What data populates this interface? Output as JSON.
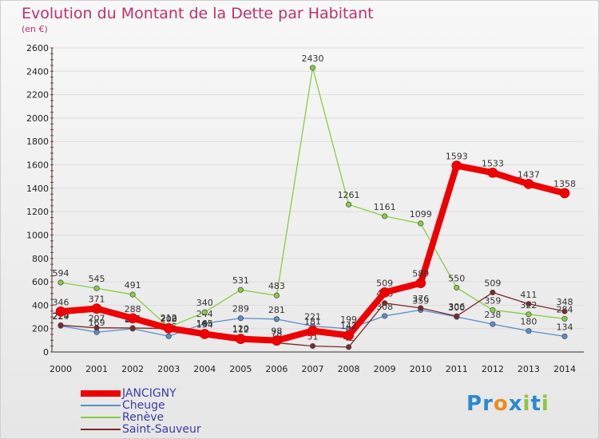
{
  "chart_data": {
    "type": "line",
    "title": "Evolution du Montant de la Dette par Habitant",
    "subtitle": "(en €)",
    "x": [
      "2000",
      "2001",
      "2002",
      "2003",
      "2004",
      "2005",
      "2006",
      "2007",
      "2008",
      "2009",
      "2010",
      "2011",
      "2012",
      "2013",
      "2014"
    ],
    "ylim": [
      0,
      2600
    ],
    "yticks": [
      "0",
      "200",
      "400",
      "600",
      "800",
      "1000",
      "1200",
      "1400",
      "1600",
      "1800",
      "2000",
      "2200",
      "2400",
      "2600"
    ],
    "series": [
      {
        "name": "Cheuge",
        "color": "#5b8ec9",
        "values": [
          224,
          169,
          199,
          135,
          244,
          289,
          281,
          221,
          199,
          308,
          359,
          300,
          238,
          180,
          134
        ],
        "labels": [
          "224",
          "169",
          "199",
          "135",
          "244",
          "289",
          "281",
          "221",
          "199",
          "308",
          "359",
          "300",
          "238",
          "180",
          "134"
        ]
      },
      {
        "name": "Renève",
        "color": "#88cc44",
        "values": [
          594,
          545,
          491,
          212,
          340,
          531,
          483,
          2430,
          1261,
          1161,
          1099,
          550,
          359,
          322,
          284
        ],
        "labels": [
          "594",
          "545",
          "491",
          "212",
          "340",
          "531",
          "483",
          "2430",
          "1261",
          "1161",
          "1099",
          "550",
          "359",
          "322",
          "284"
        ]
      },
      {
        "name": "Saint-Sauveur",
        "color": "#7a2a2a",
        "values": [
          229,
          207,
          205,
          200,
          165,
          120,
          78,
          51,
          42,
          418,
          376,
          306,
          509,
          411,
          348
        ],
        "labels": [
          "229",
          "207",
          "205",
          "200",
          "165",
          "120",
          "78",
          "51",
          "42",
          "418",
          "376",
          "306",
          "509",
          "411",
          "348"
        ]
      },
      {
        "name": "JANCIGNY",
        "color": "#ee0000",
        "values": [
          346,
          371,
          288,
          203,
          154,
          112,
          98,
          181,
          142,
          509,
          589,
          1593,
          1533,
          1437,
          1358
        ],
        "labels": [
          "346",
          "371",
          "288",
          "203",
          "154",
          "112",
          "98",
          "181",
          "142",
          "509",
          "589",
          "1593",
          "1533",
          "1437",
          "1358"
        ]
      }
    ],
    "legend": [
      "JANCIGNY",
      "Cheuge",
      "Renève",
      "Saint-Sauveur"
    ],
    "legend_position": "bottom-left"
  },
  "logo": {
    "text": "Proxiti",
    "letters": [
      "P",
      "r",
      "o",
      "x",
      "i",
      "t",
      "i"
    ],
    "colors": [
      "#2a8ad0",
      "#2a8ad0",
      "#f08a1c",
      "#2a8ad0",
      "#8cc63f",
      "#2a8ad0",
      "#8cc63f"
    ]
  }
}
